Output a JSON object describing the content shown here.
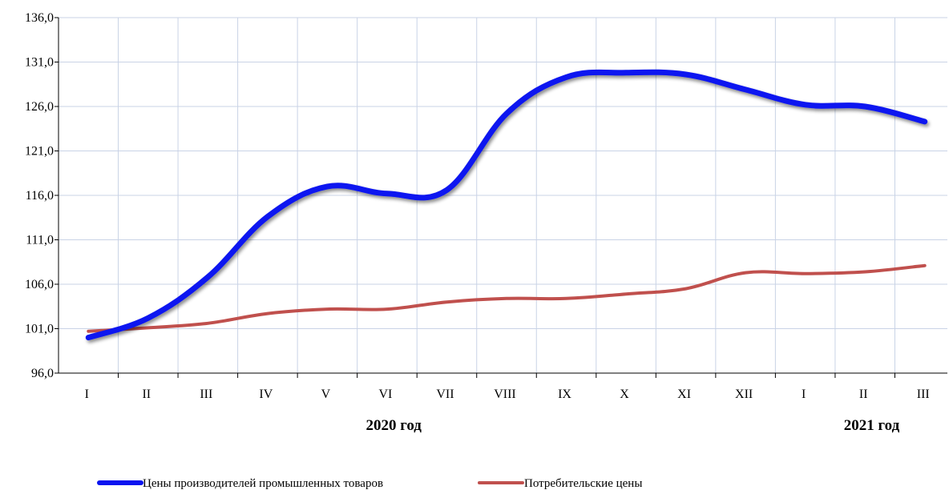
{
  "chart_data": {
    "type": "line",
    "categories": [
      "I",
      "II",
      "III",
      "IV",
      "V",
      "VI",
      "VII",
      "VIII",
      "IX",
      "X",
      "XI",
      "XII",
      "I",
      "II",
      "III"
    ],
    "year_labels": [
      {
        "label": "2020 год",
        "category_index": 5.5
      },
      {
        "label": "2021 год",
        "category_index": 13.5
      }
    ],
    "y_ticks": [
      "96,0",
      "101,0",
      "106,0",
      "111,0",
      "116,0",
      "121,0",
      "126,0",
      "131,0",
      "136,0"
    ],
    "ylim": [
      96,
      136
    ],
    "grid": true,
    "legend_position": "bottom",
    "series": [
      {
        "name": "Цены производителей промышленных товаров",
        "color": "#0A14F0",
        "values": [
          100.0,
          102.2,
          106.8,
          113.6,
          117.0,
          116.2,
          116.6,
          125.2,
          129.3,
          129.8,
          129.6,
          127.9,
          126.2,
          126.0,
          124.3
        ]
      },
      {
        "name": "Потребительские цены",
        "color": "#C0504D",
        "values": [
          100.7,
          101.1,
          101.6,
          102.7,
          103.2,
          103.2,
          104.0,
          104.4,
          104.4,
          104.9,
          105.5,
          107.3,
          107.2,
          107.4,
          108.1
        ]
      }
    ]
  }
}
